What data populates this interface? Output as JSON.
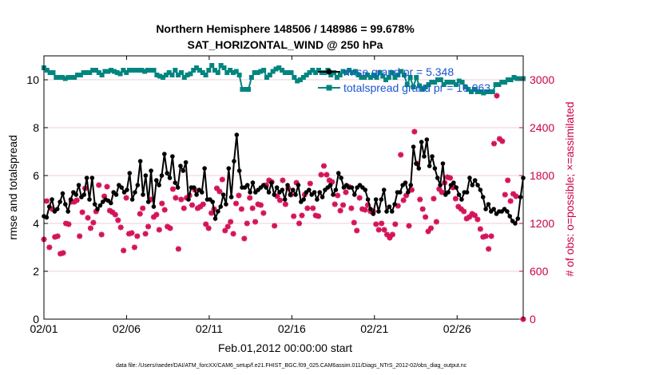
{
  "chart_data": {
    "type": "line",
    "title": "Northern Hemisphere 148506 / 148986 = 99.678%",
    "subtitle": "SAT_HORIZONTAL_WIND @ 250 hPa",
    "xlabel": "Feb.01,2012 00:00:00 start",
    "ylabel": "rmse and totalspread",
    "y2label": "# of obs: o=possible; ×=assimilated",
    "x_tick_labels": [
      "02/01",
      "02/06",
      "02/11",
      "02/16",
      "02/21",
      "02/26"
    ],
    "x_tick_values": [
      0,
      5,
      10,
      15,
      20,
      25
    ],
    "xlim": [
      0,
      29
    ],
    "y_ticks": [
      0,
      2,
      4,
      6,
      8,
      10
    ],
    "ylim": [
      0,
      11
    ],
    "y2_ticks": [
      0,
      600,
      1200,
      1800,
      2400,
      3000
    ],
    "y2lim": [
      0,
      3300
    ],
    "legend_position": "top-right",
    "footnote": "data file: /Users/raeder/DAI/ATM_forcXX/CAM6_setup/f.e21.FHIST_BGC.f09_025.CAM6assim.011/Diags_NTrS_2012-02/obs_diag_output.nc",
    "colors": {
      "rmse": "#000000",
      "spread": "#00857f",
      "obs": "#d4145a",
      "right_axis": "#cc0044",
      "legend": "#1a55d0"
    },
    "series": [
      {
        "name": "rmse grand pr = 5.348",
        "axis": "left",
        "values": [
          4.3,
          4.25,
          4.7,
          5.0,
          4.5,
          4.6,
          4.9,
          5.25,
          4.8,
          4.5,
          5.0,
          5.3,
          5.2,
          5.6,
          5.1,
          5.2,
          5.9,
          5.0,
          5.9,
          4.8,
          4.6,
          4.75,
          4.9,
          5.0,
          4.95,
          4.85,
          5.3,
          5.2,
          5.6,
          5.5,
          5.3,
          5.4,
          6.1,
          5.0,
          5.3,
          5.6,
          6.6,
          5.2,
          6.0,
          4.9,
          6.2,
          4.7,
          5.8,
          5.6,
          6.0,
          6.9,
          6.1,
          5.9,
          6.8,
          5.7,
          5.5,
          6.4,
          6.2,
          6.55,
          5.0,
          5.5,
          5.5,
          5.2,
          5.4,
          5.3,
          6.3,
          5.0,
          5.0,
          4.9,
          4.2,
          4.5,
          4.7,
          5.2,
          4.8,
          6.3,
          5.1,
          6.6,
          7.7,
          6.2,
          5.5,
          5.5,
          5.6,
          5.3,
          5.7,
          5.3,
          5.4,
          5.5,
          5.6,
          5.5,
          5.3,
          5.7,
          5.2,
          5.5,
          5.3,
          5.4,
          5.0,
          5.6,
          5.2,
          5.4,
          5.2,
          5.6,
          4.9,
          5.0,
          5.3,
          5.4,
          5.2,
          5.3,
          5.0,
          5.3,
          5.1,
          5.4,
          5.5,
          5.6,
          5.2,
          5.4,
          6.1,
          5.9,
          5.5,
          5.6,
          5.5,
          5.5,
          5.2,
          5.5,
          5.6,
          5.5,
          5.4,
          5.0,
          4.6,
          4.4,
          5.0,
          4.5,
          5.0,
          5.4,
          4.5,
          4.7,
          4.5,
          4.8,
          5.3,
          5.3,
          5.6,
          5.7,
          5.3,
          5.6,
          7.2,
          6.5,
          6.3,
          7.4,
          6.8,
          7.5,
          6.4,
          6.8,
          6.3,
          5.9,
          5.6,
          6.5,
          5.2,
          5.3,
          5.6,
          5.7,
          5.5,
          5.2,
          5.0,
          5.3,
          5.3,
          5.9,
          5.6,
          5.8,
          5.6,
          5.4,
          5.1,
          4.6,
          4.8,
          4.5,
          4.6,
          4.4,
          4.5,
          4.5,
          4.6,
          4.5,
          4.3,
          4.1,
          4.0,
          4.2,
          5.1,
          5.9
        ]
      },
      {
        "name": "totalspread grand pr = 10.063",
        "axis": "left",
        "values": [
          10.5,
          10.4,
          10.3,
          10.3,
          10.1,
          10.1,
          10.1,
          10.05,
          10.1,
          10.1,
          10.1,
          10.2,
          10.2,
          10.3,
          10.3,
          10.3,
          10.4,
          10.4,
          10.3,
          10.2,
          10.35,
          10.35,
          10.4,
          10.35,
          10.3,
          10.25,
          10.4,
          10.3,
          10.4,
          10.4,
          10.4,
          10.4,
          10.4,
          10.35,
          10.4,
          10.4,
          10.4,
          10.2,
          10.15,
          10.1,
          10.2,
          10.3,
          10.2,
          10.4,
          10.2,
          10.3,
          10.1,
          10.2,
          10.25,
          10.4,
          10.5,
          10.4,
          10.3,
          10.2,
          10.4,
          10.6,
          10.4,
          10.3,
          10.6,
          10.5,
          10.3,
          10.4,
          10.3,
          10.35,
          10.2,
          9.6,
          9.6,
          9.6,
          10.1,
          10.3,
          10.3,
          10.35,
          10.4,
          10.1,
          10.2,
          10.35,
          10.45,
          10.5,
          10.4,
          10.3,
          10.3,
          10.3,
          10.1,
          9.95,
          10.0,
          10.1,
          10.2,
          10.3,
          10.4,
          10.3,
          10.4,
          10.3,
          10.3,
          10.4,
          10.2,
          10.3,
          10.1,
          10.2,
          10.35,
          10.3,
          10.4,
          10.3,
          10.35,
          10.2,
          10.1,
          10.1,
          10.2,
          10.1,
          10.2,
          10.1,
          10.3,
          10.15,
          10.0,
          10.1,
          10.3,
          10.1,
          10.2,
          10.35,
          10.2,
          9.8,
          10.1,
          9.7,
          10.1,
          9.75,
          9.6,
          9.7,
          9.8,
          9.9,
          9.9,
          10.0,
          10.0,
          9.8,
          9.9,
          9.9,
          9.9,
          9.8,
          9.95,
          9.9,
          9.7,
          9.6,
          9.5,
          9.6,
          9.5,
          9.5,
          9.45,
          9.5,
          9.5,
          9.5,
          9.8,
          9.8,
          9.9,
          9.9,
          10.0,
          10.0,
          10.1,
          10.05,
          10.05,
          10.05
        ]
      },
      {
        "name": "# of obs assimilated",
        "axis": "right",
        "values": [
          1000,
          1480,
          900,
          1380,
          1030,
          1040,
          820,
          830,
          1200,
          1190,
          1470,
          1470,
          1490,
          1040,
          1340,
          1640,
          1270,
          1140,
          1210,
          1350,
          1680,
          1060,
          1540,
          1660,
          1360,
          1340,
          1310,
          1240,
          1150,
          860,
          1520,
          1070,
          1080,
          900,
          1040,
          1320,
          1390,
          1070,
          1160,
          1500,
          1280,
          1310,
          1120,
          1450,
          1370,
          1160,
          1140,
          1630,
          1520,
          880,
          1500,
          1390,
          1520,
          1550,
          1430,
          1620,
          1390,
          1410,
          1440,
          1190,
          1140,
          1330,
          1380,
          1640,
          1600,
          1750,
          1110,
          1160,
          1220,
          1070,
          1450,
          1550,
          1380,
          1010,
          1200,
          1520,
          1390,
          1220,
          1440,
          1430,
          1330,
          1680,
          1740,
          1720,
          1170,
          1540,
          1490,
          1740,
          1440,
          1640,
          1560,
          1290,
          1710,
          1200,
          1300,
          1560,
          1390,
          1700,
          1390,
          1300,
          1290,
          1810,
          1920,
          1810,
          1740,
          1720,
          1440,
          1550,
          1360,
          1430,
          1590,
          1660,
          1390,
          1210,
          1110,
          1520,
          1380,
          1370,
          1430,
          1350,
          1350,
          1190,
          1120,
          1200,
          1120,
          1060,
          1020,
          1060,
          1190,
          1420,
          2060,
          1490,
          1550,
          1170,
          1620,
          2350,
          1950,
          1500,
          1380,
          1280,
          1100,
          1140,
          1510,
          1220,
          1630,
          1590,
          1710,
          1780,
          1770,
          1650,
          1510,
          1410,
          1380,
          1350,
          1260,
          1280,
          1320,
          1300,
          1250,
          1130,
          1030,
          1040,
          880,
          1040,
          2200,
          2800,
          2260,
          2230,
          1560,
          1740,
          1480,
          1570,
          1540
        ]
      }
    ]
  }
}
